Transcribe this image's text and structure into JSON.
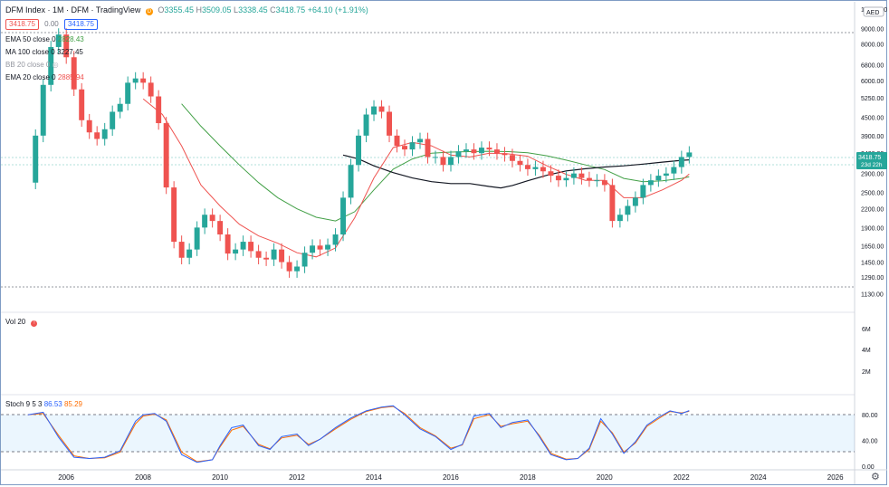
{
  "header": {
    "symbol": "DFM Index · 1M · DFM · TradingView",
    "ohlc": {
      "o_label": "O",
      "o": "3355.45",
      "h_label": "H",
      "h": "3509.05",
      "l_label": "L",
      "l": "3338.45",
      "c_label": "C",
      "c": "3418.75",
      "chg": "+64.10 (+1.91%)"
    },
    "sell_price": "3418.75",
    "spread": "0.00",
    "buy_price": "3418.75",
    "currency": "AED"
  },
  "indicators": [
    {
      "label": "EMA 50 close 0",
      "value": "2828.43",
      "color": "#43a047"
    },
    {
      "label": "MA 100 close 0",
      "value": "3227.45",
      "color": "#131722"
    },
    {
      "label": "BB 20 close 0",
      "value": "",
      "color": "#b0b3bd"
    },
    {
      "label": "EMA 20 close 0",
      "value": "2885.94",
      "color": "#ef5350"
    }
  ],
  "volume_label": "Vol 20",
  "stoch": {
    "label": "Stoch 9 5 3",
    "k": "86.53",
    "d": "85.29",
    "k_color": "#2962ff",
    "d_color": "#ff6d00"
  },
  "price_badge": {
    "price": "3418.75",
    "countdown": "23d 22h"
  },
  "price_axis": [
    "10500.00",
    "9000.00",
    "8000.00",
    "6800.00",
    "6000.00",
    "5250.00",
    "4500.00",
    "3900.00",
    "3400.00",
    "2900.00",
    "2500.00",
    "2200.00",
    "1900.00",
    "1650.00",
    "1450.00",
    "1290.00",
    "1130.00"
  ],
  "volume_axis": [
    "6M",
    "4M",
    "2M"
  ],
  "stoch_axis": [
    "80.00",
    "40.00",
    "0.00"
  ],
  "time_axis": [
    "2006",
    "2008",
    "2010",
    "2012",
    "2014",
    "2016",
    "2018",
    "2020",
    "2022",
    "2024",
    "2026"
  ],
  "chart_data": {
    "type": "line",
    "price_scale": "log",
    "price_range": [
      1000,
      10800
    ],
    "series": [
      {
        "name": "DFM Index",
        "x": [
          2005.0,
          2005.2,
          2005.4,
          2005.6,
          2005.8,
          2006.0,
          2006.2,
          2006.4,
          2006.6,
          2006.8,
          2007.0,
          2007.2,
          2007.4,
          2007.6,
          2007.8,
          2008.0,
          2008.2,
          2008.4,
          2008.6,
          2008.8,
          2009.0,
          2009.2,
          2009.4,
          2009.6,
          2009.8,
          2010.0,
          2010.2,
          2010.4,
          2010.6,
          2010.8,
          2011.0,
          2011.2,
          2011.4,
          2011.6,
          2011.8,
          2012.0,
          2012.2,
          2012.4,
          2012.6,
          2012.8,
          2013.0,
          2013.2,
          2013.4,
          2013.6,
          2013.8,
          2014.0,
          2014.2,
          2014.4,
          2014.6,
          2014.8,
          2015.0,
          2015.2,
          2015.4,
          2015.6,
          2015.8,
          2016.0,
          2016.2,
          2016.4,
          2016.6,
          2016.8,
          2017.0,
          2017.2,
          2017.4,
          2017.6,
          2017.8,
          2018.0,
          2018.2,
          2018.4,
          2018.6,
          2018.8,
          2019.0,
          2019.2,
          2019.4,
          2019.6,
          2019.8,
          2020.0,
          2020.2,
          2020.4,
          2020.6,
          2020.8,
          2021.0,
          2021.2,
          2021.4,
          2021.6,
          2021.8,
          2022.0,
          2022.2
        ],
        "y": [
          2700,
          3900,
          5800,
          7800,
          8600,
          7200,
          5600,
          4400,
          4000,
          3800,
          4100,
          4700,
          5000,
          5900,
          6100,
          5900,
          5300,
          4300,
          2600,
          1700,
          1500,
          1600,
          1900,
          2100,
          2000,
          1800,
          1550,
          1600,
          1700,
          1580,
          1500,
          1480,
          1600,
          1450,
          1350,
          1400,
          1560,
          1650,
          1600,
          1660,
          1800,
          2400,
          3100,
          3900,
          4600,
          4900,
          4700,
          3900,
          3600,
          3500,
          3700,
          3800,
          3300,
          3300,
          3100,
          3300,
          3450,
          3500,
          3400,
          3550,
          3500,
          3400,
          3350,
          3200,
          3100,
          3000,
          3050,
          2950,
          2850,
          2750,
          2800,
          2900,
          2800,
          2750,
          2750,
          2650,
          2000,
          2100,
          2250,
          2400,
          2650,
          2750,
          2850,
          2900,
          3050,
          3300,
          3418.75
        ]
      },
      {
        "name": "EMA 50 close 0",
        "x": [
          2009.0,
          2009.5,
          2010.0,
          2010.5,
          2011.0,
          2011.5,
          2012.0,
          2012.5,
          2013.0,
          2013.5,
          2014.0,
          2014.5,
          2015.0,
          2015.5,
          2016.0,
          2016.5,
          2017.0,
          2017.5,
          2018.0,
          2018.5,
          2019.0,
          2019.5,
          2020.0,
          2020.5,
          2021.0,
          2021.5,
          2022.0,
          2022.2
        ],
        "y": [
          5000,
          4200,
          3600,
          3100,
          2700,
          2400,
          2200,
          2060,
          2000,
          2150,
          2550,
          3000,
          3250,
          3400,
          3430,
          3440,
          3450,
          3440,
          3410,
          3330,
          3220,
          3100,
          2990,
          2790,
          2720,
          2740,
          2790,
          2828.43
        ]
      },
      {
        "name": "MA 100 close 0",
        "x": [
          2013.2,
          2013.6,
          2014.0,
          2014.5,
          2015.0,
          2015.5,
          2016.0,
          2016.5,
          2017.0,
          2017.3,
          2017.6,
          2018.0,
          2018.5,
          2019.0,
          2019.5,
          2020.0,
          2020.5,
          2021.0,
          2021.5,
          2022.0,
          2022.2
        ],
        "y": [
          3350,
          3250,
          3080,
          2920,
          2800,
          2720,
          2680,
          2680,
          2620,
          2590,
          2640,
          2740,
          2860,
          2960,
          3010,
          3050,
          3080,
          3120,
          3170,
          3215,
          3227.45
        ]
      },
      {
        "name": "EMA 20 close 0",
        "x": [
          2008.0,
          2008.5,
          2009.0,
          2009.5,
          2010.0,
          2010.5,
          2011.0,
          2011.5,
          2012.0,
          2012.5,
          2013.0,
          2013.5,
          2014.0,
          2014.5,
          2015.0,
          2015.5,
          2016.0,
          2016.5,
          2017.0,
          2017.5,
          2018.0,
          2018.5,
          2019.0,
          2019.5,
          2020.0,
          2020.5,
          2021.0,
          2021.5,
          2022.0,
          2022.2
        ],
        "y": [
          5200,
          4600,
          3600,
          2650,
          2250,
          1950,
          1780,
          1680,
          1560,
          1510,
          1620,
          2050,
          2800,
          3550,
          3700,
          3600,
          3350,
          3300,
          3400,
          3380,
          3320,
          3080,
          2880,
          2750,
          2750,
          2400,
          2400,
          2550,
          2750,
          2885.94
        ]
      }
    ],
    "stochastic": {
      "x": [
        2005.0,
        2005.4,
        2005.8,
        2006.2,
        2006.6,
        2007.0,
        2007.4,
        2007.8,
        2008.0,
        2008.3,
        2008.6,
        2009.0,
        2009.4,
        2009.8,
        2010.0,
        2010.3,
        2010.6,
        2011.0,
        2011.3,
        2011.6,
        2012.0,
        2012.3,
        2012.6,
        2013.0,
        2013.4,
        2013.8,
        2014.2,
        2014.5,
        2014.8,
        2015.2,
        2015.6,
        2016.0,
        2016.3,
        2016.6,
        2017.0,
        2017.3,
        2017.6,
        2018.0,
        2018.3,
        2018.6,
        2019.0,
        2019.3,
        2019.6,
        2019.9,
        2020.2,
        2020.5,
        2020.8,
        2021.1,
        2021.4,
        2021.7,
        2022.0,
        2022.2
      ],
      "k": [
        80,
        84,
        45,
        14,
        12,
        14,
        24,
        70,
        80,
        82,
        70,
        18,
        6,
        10,
        32,
        60,
        64,
        32,
        26,
        46,
        50,
        32,
        42,
        60,
        75,
        86,
        92,
        94,
        80,
        58,
        46,
        26,
        34,
        78,
        82,
        60,
        68,
        72,
        46,
        18,
        10,
        12,
        28,
        74,
        50,
        20,
        38,
        64,
        76,
        86,
        82,
        86.53
      ],
      "d": [
        80,
        82,
        48,
        16,
        12,
        13,
        22,
        66,
        78,
        81,
        72,
        22,
        7,
        10,
        30,
        56,
        62,
        34,
        27,
        44,
        48,
        34,
        42,
        58,
        73,
        85,
        91,
        93,
        82,
        60,
        47,
        28,
        33,
        74,
        80,
        62,
        66,
        70,
        48,
        20,
        11,
        12,
        26,
        70,
        52,
        22,
        36,
        62,
        74,
        85,
        83,
        85.29
      ],
      "upper": 80,
      "lower": 20,
      "ylim": [
        0,
        100
      ]
    },
    "xlim": [
      2004.3,
      2026.5
    ]
  }
}
